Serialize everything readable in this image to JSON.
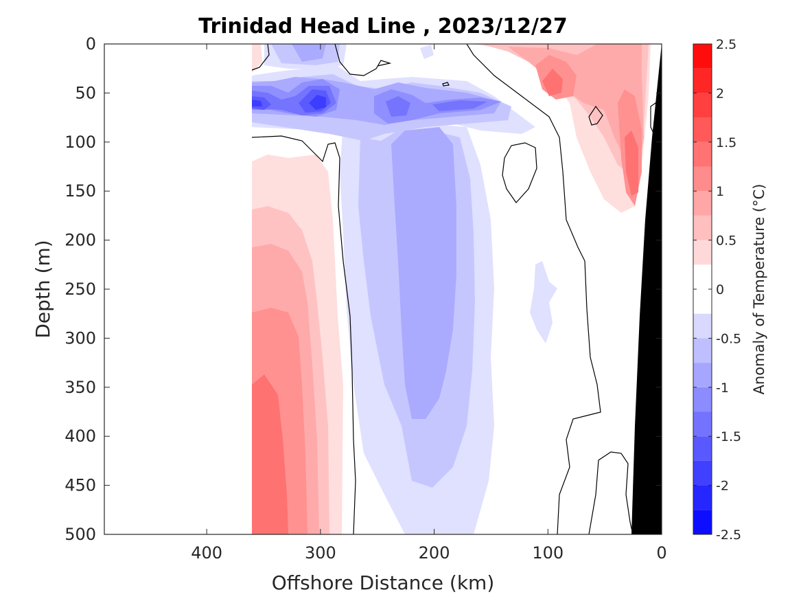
{
  "chart_data": {
    "type": "contour",
    "title": "Trinidad Head Line , 2023/12/27",
    "xlabel": "Offshore Distance (km)",
    "ylabel": "Depth (m)",
    "x_reversed": true,
    "y_reversed": true,
    "xlim": [
      490,
      0
    ],
    "ylim": [
      0,
      500
    ],
    "x_ticks": [
      400,
      300,
      200,
      100,
      0
    ],
    "y_ticks": [
      0,
      50,
      100,
      150,
      200,
      250,
      300,
      350,
      400,
      450,
      500
    ],
    "data_extent_km": [
      360,
      0
    ],
    "colorbar": {
      "label": "Anomaly of Temperature (°C)",
      "range": [
        -2.5,
        2.5
      ],
      "levels": [
        -2.5,
        -2.25,
        -2.0,
        -1.75,
        -1.5,
        -1.25,
        -1.0,
        -0.75,
        -0.5,
        -0.25,
        0,
        0.25,
        0.5,
        0.75,
        1.0,
        1.25,
        1.5,
        1.75,
        2.0,
        2.25,
        2.5
      ],
      "ticks": [
        2.5,
        2,
        1.5,
        1,
        0.5,
        0,
        -0.5,
        -1,
        -1.5,
        -2,
        -2.5
      ],
      "tick_labels": [
        "2.5",
        "2",
        "1.5",
        "1",
        "0.5",
        "0",
        "-0.5",
        "-1",
        "-1.5",
        "-2",
        "-2.5"
      ]
    },
    "features": [
      {
        "name": "deep-warm-offshore",
        "x_km": [
          360,
          280
        ],
        "depth_m": [
          170,
          500
        ],
        "peak_anomaly": 1.5
      },
      {
        "name": "cold-core-subsurface",
        "x_km": [
          260,
          130
        ],
        "depth_m": [
          40,
          500
        ],
        "peak_anomaly": -1.0
      },
      {
        "name": "cold-lens-50m",
        "x_km": [
          360,
          150
        ],
        "depth_m": [
          30,
          90
        ],
        "peak_anomaly": -2.0
      },
      {
        "name": "warm-nearshore",
        "x_km": [
          130,
          15
        ],
        "depth_m": [
          0,
          250
        ],
        "peak_anomaly": 1.5
      },
      {
        "name": "bathymetry",
        "color": "#000000"
      }
    ]
  }
}
